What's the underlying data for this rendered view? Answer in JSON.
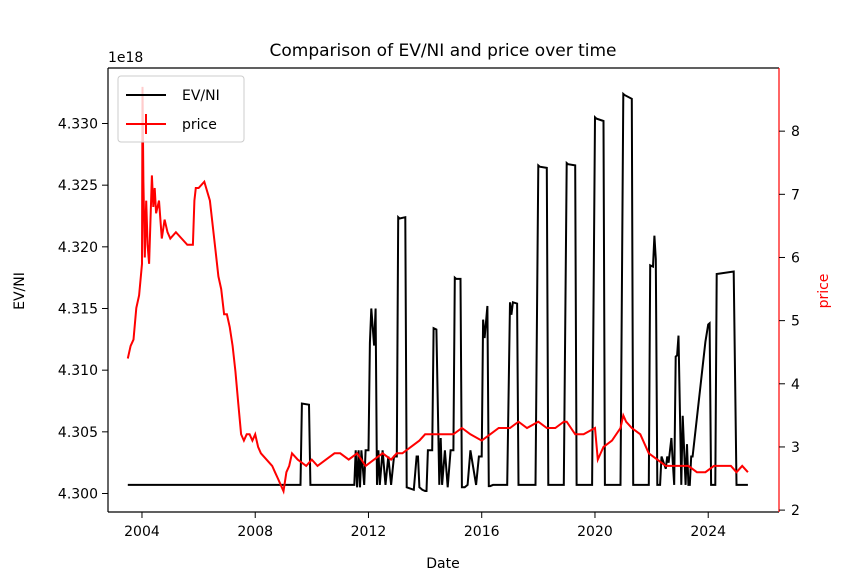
{
  "chart_data": {
    "type": "line",
    "title": "Comparison of EV/NI and price over time",
    "xlabel": "Date",
    "ylabel_left": "EV/NI",
    "ylabel_right": "price",
    "left_axis_offset_label": "1e18",
    "colors": {
      "EV/NI": "#000000",
      "price": "#ff0000",
      "axis_right": "#ff0000"
    },
    "x_ticks": [
      "2004",
      "2008",
      "2012",
      "2016",
      "2020",
      "2024"
    ],
    "x_tick_values": [
      2004,
      2008,
      2012,
      2016,
      2020,
      2024
    ],
    "xlim": [
      2002.8,
      2026.5
    ],
    "y_left_ticks": [
      "4.300",
      "4.305",
      "4.310",
      "4.315",
      "4.320",
      "4.325",
      "4.330"
    ],
    "y_left_tick_values": [
      4.3,
      4.305,
      4.31,
      4.315,
      4.32,
      4.325,
      4.33
    ],
    "ylim_left": [
      4.2985,
      4.3345
    ],
    "y_right_ticks": [
      "2",
      "3",
      "4",
      "5",
      "6",
      "7",
      "8"
    ],
    "y_right_tick_values": [
      2,
      3,
      4,
      5,
      6,
      7,
      8
    ],
    "ylim_right": [
      1.97,
      9.0
    ],
    "legend": {
      "placement": "upper-left",
      "entries": [
        "EV/NI",
        "price"
      ]
    },
    "series": [
      {
        "name": "EV/NI",
        "axis": "left",
        "x": [
          2003.5,
          2009.6,
          2009.65,
          2009.9,
          2009.95,
          2011.5,
          2011.55,
          2011.6,
          2011.65,
          2011.7,
          2011.75,
          2011.85,
          2011.9,
          2012.0,
          2012.05,
          2012.1,
          2012.2,
          2012.25,
          2012.3,
          2012.35,
          2012.4,
          2012.5,
          2012.6,
          2012.7,
          2012.8,
          2012.9,
          2013.0,
          2013.05,
          2013.1,
          2013.3,
          2013.35,
          2013.6,
          2013.7,
          2013.75,
          2013.8,
          2013.9,
          2014.0,
          2014.05,
          2014.1,
          2014.25,
          2014.3,
          2014.4,
          2014.5,
          2014.55,
          2014.6,
          2014.7,
          2014.8,
          2014.9,
          2015.0,
          2015.05,
          2015.1,
          2015.25,
          2015.3,
          2015.4,
          2015.5,
          2015.6,
          2015.8,
          2015.9,
          2016.0,
          2016.05,
          2016.1,
          2016.2,
          2016.25,
          2016.3,
          2016.4,
          2016.5,
          2016.9,
          2017.0,
          2017.05,
          2017.1,
          2017.25,
          2017.3,
          2017.9,
          2018.0,
          2018.05,
          2018.3,
          2018.35,
          2018.9,
          2019.0,
          2019.05,
          2019.3,
          2019.35,
          2019.9,
          2020.0,
          2020.05,
          2020.3,
          2020.35,
          2020.9,
          2021.0,
          2021.05,
          2021.3,
          2021.35,
          2021.9,
          2021.95,
          2022.05,
          2022.1,
          2022.15,
          2022.2,
          2022.3,
          2022.35,
          2022.5,
          2022.55,
          2022.6,
          2022.7,
          2022.75,
          2022.8,
          2022.85,
          2022.9,
          2022.95,
          2023.05,
          2023.1,
          2023.2,
          2023.25,
          2023.3,
          2023.35,
          2023.4,
          2023.45,
          2023.9,
          2024.0,
          2024.05,
          2024.1,
          2024.25,
          2024.3,
          2024.9,
          2025.0,
          2025.05,
          2025.1,
          2025.3,
          2025.35,
          2025.4
        ],
        "y": [
          4.3007,
          4.3007,
          4.3073,
          4.3072,
          4.3007,
          4.3007,
          4.3035,
          4.3005,
          4.3035,
          4.3005,
          4.3035,
          4.3007,
          4.3035,
          4.3035,
          4.3122,
          4.315,
          4.312,
          4.315,
          4.3007,
          4.3035,
          4.3007,
          4.3035,
          4.3007,
          4.303,
          4.3007,
          4.303,
          4.303,
          4.3224,
          4.3223,
          4.3224,
          4.3005,
          4.3003,
          4.303,
          4.303,
          4.3005,
          4.3003,
          4.3002,
          4.3002,
          4.3035,
          4.3035,
          4.3134,
          4.3133,
          4.3007,
          4.3045,
          4.3007,
          4.3035,
          4.3005,
          4.3035,
          4.3035,
          4.3175,
          4.3174,
          4.3174,
          4.3005,
          4.3005,
          4.3007,
          4.3035,
          4.3007,
          4.303,
          4.303,
          4.3141,
          4.3126,
          4.3152,
          4.3006,
          4.3006,
          4.3007,
          4.3007,
          4.3007,
          4.3155,
          4.3145,
          4.3155,
          4.3154,
          4.3007,
          4.3007,
          4.3266,
          4.3265,
          4.3264,
          4.3007,
          4.3007,
          4.3268,
          4.3267,
          4.3266,
          4.3007,
          4.3007,
          4.3305,
          4.3304,
          4.3302,
          4.3007,
          4.3007,
          4.3324,
          4.3323,
          4.332,
          4.3007,
          4.3007,
          4.3185,
          4.3184,
          4.3209,
          4.319,
          4.3007,
          4.3007,
          4.303,
          4.302,
          4.303,
          4.3025,
          4.3045,
          4.3025,
          4.3007,
          4.3111,
          4.3112,
          4.3128,
          4.3007,
          4.3063,
          4.3007,
          4.304,
          4.3007,
          4.3007,
          4.303,
          4.303,
          4.3123,
          4.3137,
          4.3138,
          4.3007,
          4.3007,
          4.3178,
          4.318,
          4.3007,
          4.3007,
          4.3007,
          4.3007,
          4.3007,
          4.3007
        ]
      },
      {
        "name": "price",
        "axis": "right",
        "x": [
          2003.5,
          2003.6,
          2003.7,
          2003.8,
          2003.9,
          2004.0,
          2004.02,
          2004.05,
          2004.1,
          2004.15,
          2004.2,
          2004.25,
          2004.3,
          2004.35,
          2004.4,
          2004.45,
          2004.5,
          2004.6,
          2004.7,
          2004.8,
          2004.9,
          2005.0,
          2005.2,
          2005.4,
          2005.6,
          2005.8,
          2005.85,
          2005.9,
          2006.0,
          2006.2,
          2006.4,
          2006.6,
          2006.7,
          2006.8,
          2006.9,
          2007.0,
          2007.1,
          2007.2,
          2007.3,
          2007.4,
          2007.5,
          2007.6,
          2007.7,
          2007.8,
          2007.9,
          2008.0,
          2008.1,
          2008.2,
          2008.4,
          2008.6,
          2008.7,
          2008.8,
          2008.9,
          2009.0,
          2009.1,
          2009.2,
          2009.3,
          2009.5,
          2009.8,
          2010.0,
          2010.2,
          2010.5,
          2010.8,
          2011.0,
          2011.3,
          2011.6,
          2011.9,
          2012.2,
          2012.5,
          2012.8,
          2013.0,
          2013.2,
          2013.5,
          2013.8,
          2014.0,
          2014.3,
          2014.6,
          2015.0,
          2015.3,
          2015.6,
          2016.0,
          2016.3,
          2016.6,
          2017.0,
          2017.3,
          2017.6,
          2018.0,
          2018.3,
          2018.6,
          2018.9,
          2019.0,
          2019.3,
          2019.6,
          2020.0,
          2020.1,
          2020.3,
          2020.6,
          2020.9,
          2021.0,
          2021.1,
          2021.3,
          2021.6,
          2021.9,
          2022.2,
          2022.5,
          2022.8,
          2023.0,
          2023.3,
          2023.6,
          2023.9,
          2024.2,
          2024.5,
          2024.8,
          2025.0,
          2025.2,
          2025.4
        ],
        "y": [
          4.4,
          4.6,
          4.7,
          5.2,
          5.4,
          5.9,
          8.7,
          7.2,
          6.0,
          6.9,
          6.2,
          5.9,
          6.6,
          7.3,
          6.8,
          7.1,
          6.7,
          6.9,
          6.3,
          6.6,
          6.4,
          6.3,
          6.4,
          6.3,
          6.2,
          6.2,
          6.9,
          7.1,
          7.1,
          7.2,
          6.9,
          6.1,
          5.7,
          5.5,
          5.1,
          5.1,
          4.9,
          4.6,
          4.2,
          3.7,
          3.2,
          3.1,
          3.2,
          3.2,
          3.1,
          3.2,
          3.0,
          2.9,
          2.8,
          2.7,
          2.6,
          2.5,
          2.4,
          2.3,
          2.6,
          2.7,
          2.9,
          2.8,
          2.7,
          2.8,
          2.7,
          2.8,
          2.9,
          2.9,
          2.8,
          2.9,
          2.7,
          2.8,
          2.9,
          2.8,
          2.9,
          2.9,
          3.0,
          3.1,
          3.2,
          3.2,
          3.2,
          3.2,
          3.3,
          3.2,
          3.1,
          3.2,
          3.3,
          3.3,
          3.4,
          3.3,
          3.4,
          3.3,
          3.3,
          3.4,
          3.4,
          3.2,
          3.2,
          3.3,
          2.8,
          3.0,
          3.1,
          3.3,
          3.5,
          3.4,
          3.3,
          3.2,
          2.9,
          2.8,
          2.7,
          2.7,
          2.7,
          2.7,
          2.6,
          2.6,
          2.7,
          2.7,
          2.7,
          2.6,
          2.7,
          2.6
        ]
      }
    ]
  }
}
